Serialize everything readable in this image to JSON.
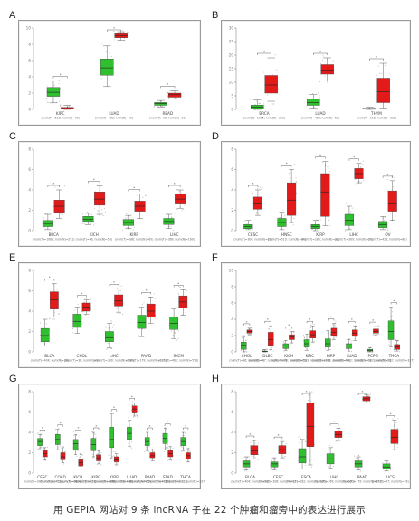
{
  "caption": "用 GEPIA 网站对 9 条 lncRNA 子在 22 个肿瘤和瘤旁中的表达进行展示",
  "colors": {
    "normal": "#2fbf2f",
    "tumor": "#e31a1a",
    "frame": "#9a9a9a",
    "bracket": "#666666"
  },
  "chart_data": [
    {
      "panel": "A",
      "type": "box",
      "ylim": [
        0,
        10
      ],
      "yticks": [
        0,
        2,
        4,
        6,
        8,
        10
      ],
      "groups": [
        {
          "name": "KIRC",
          "sub": "(num(T)=523; num(N)=72)",
          "normal": [
            0.8,
            1.6,
            2.1,
            2.7,
            3.5
          ],
          "tumor": [
            0.0,
            0.05,
            0.1,
            0.25,
            0.5
          ],
          "sig": true
        },
        {
          "name": "LUAD",
          "sub": "(num(T)=483; num(N)=59)",
          "normal": [
            2.8,
            4.2,
            5.1,
            6.2,
            7.8
          ],
          "tumor": [
            8.5,
            8.8,
            9.05,
            9.3,
            9.55
          ],
          "sig": true
        },
        {
          "name": "READ",
          "sub": "(num(T)=92; num(N)=10)",
          "normal": [
            0.3,
            0.5,
            0.7,
            0.85,
            1.1
          ],
          "tumor": [
            1.3,
            1.5,
            1.8,
            2.0,
            2.3
          ],
          "sig": true
        }
      ]
    },
    {
      "panel": "B",
      "type": "box",
      "ylim": [
        0,
        30
      ],
      "yticks": [
        0,
        5,
        10,
        15,
        20,
        25,
        30
      ],
      "groups": [
        {
          "name": "BRCA",
          "sub": "(num(T)=1085; num(N)=291)",
          "normal": [
            0.0,
            0.3,
            0.8,
            1.6,
            3.5
          ],
          "tumor": [
            3.0,
            6.0,
            9.0,
            12.5,
            19.0
          ],
          "sig": true
        },
        {
          "name": "LUAD",
          "sub": "(num(T)=483; num(N)=59)",
          "normal": [
            0.5,
            1.5,
            2.5,
            3.8,
            5.5
          ],
          "tumor": [
            10.5,
            13.0,
            14.5,
            16.5,
            19.0
          ],
          "sig": true
        },
        {
          "name": "THYM",
          "sub": "(num(T)=118; num(N)=339)",
          "normal": [
            0.0,
            0.1,
            0.2,
            0.4,
            0.8
          ],
          "tumor": [
            0.5,
            2.5,
            6.5,
            11.5,
            17.0
          ],
          "sig": true
        }
      ]
    },
    {
      "panel": "C",
      "type": "box",
      "ylim": [
        0,
        8
      ],
      "yticks": [
        0,
        2,
        4,
        6,
        8
      ],
      "groups": [
        {
          "name": "BRCA",
          "sub": "(num(T)=1085; num(N)=291)",
          "normal": [
            0.1,
            0.4,
            0.7,
            1.0,
            1.6
          ],
          "tumor": [
            1.2,
            1.8,
            2.4,
            3.0,
            4.0
          ],
          "sig": true
        },
        {
          "name": "KICH",
          "sub": "(num(T)=66; num(N)=53)",
          "normal": [
            0.6,
            0.9,
            1.1,
            1.4,
            1.7
          ],
          "tumor": [
            1.6,
            2.5,
            3.1,
            3.8,
            4.4
          ],
          "sig": true
        },
        {
          "name": "KIRP",
          "sub": "(num(T)=286; num(N)=60)",
          "normal": [
            0.2,
            0.5,
            0.8,
            1.1,
            1.5
          ],
          "tumor": [
            1.2,
            1.9,
            2.4,
            2.9,
            3.6
          ],
          "sig": true
        },
        {
          "name": "LIHC",
          "sub": "(num(T)=369; num(N)=160)",
          "normal": [
            0.2,
            0.6,
            0.9,
            1.2,
            1.6
          ],
          "tumor": [
            2.2,
            2.7,
            3.1,
            3.6,
            4.0
          ],
          "sig": true
        }
      ]
    },
    {
      "panel": "D",
      "type": "box",
      "ylim": [
        0,
        8
      ],
      "yticks": [
        0,
        2,
        4,
        6,
        8
      ],
      "groups": [
        {
          "name": "CESC",
          "sub": "(num(T)=306; num(N)=13)",
          "normal": [
            0.1,
            0.2,
            0.4,
            0.6,
            1.0
          ],
          "tumor": [
            1.5,
            2.1,
            2.7,
            3.3,
            4.0
          ],
          "sig": true
        },
        {
          "name": "HNSC",
          "sub": "(num(T)=519; num(N)=44)",
          "normal": [
            0.1,
            0.4,
            0.8,
            1.2,
            1.8
          ],
          "tumor": [
            0.8,
            1.5,
            3.0,
            4.7,
            6.0
          ],
          "sig": true
        },
        {
          "name": "KIRP",
          "sub": "(num(T)=286; num(N)=32)",
          "normal": [
            0.0,
            0.2,
            0.4,
            0.6,
            1.0
          ],
          "tumor": [
            0.5,
            1.4,
            3.8,
            5.6,
            6.8
          ],
          "sig": true
        },
        {
          "name": "LIHC",
          "sub": "(num(T)=369; num(N)=50)",
          "normal": [
            0.1,
            0.5,
            1.0,
            1.6,
            2.4
          ],
          "tumor": [
            4.7,
            5.1,
            5.6,
            6.1,
            6.6
          ],
          "sig": true
        },
        {
          "name": "OV",
          "sub": "(num(T)=426; num(N)=88)",
          "normal": [
            0.1,
            0.3,
            0.6,
            0.9,
            1.4
          ],
          "tumor": [
            1.0,
            1.9,
            2.7,
            3.9,
            4.9
          ],
          "sig": true
        }
      ]
    },
    {
      "panel": "E",
      "type": "box",
      "ylim": [
        0,
        8
      ],
      "yticks": [
        0,
        2,
        4,
        6,
        8
      ],
      "groups": [
        {
          "name": "BLCA",
          "sub": "(num(T)=404; num(N)=28)",
          "normal": [
            0.6,
            1.0,
            1.6,
            2.3,
            3.2
          ],
          "tumor": [
            3.4,
            4.2,
            5.1,
            5.9,
            6.7
          ],
          "sig": true
        },
        {
          "name": "CHOL",
          "sub": "(num(T)=36; num(N)=9)",
          "normal": [
            1.8,
            2.4,
            3.0,
            3.7,
            4.4
          ],
          "tumor": [
            3.7,
            4.0,
            4.4,
            4.8,
            5.1
          ],
          "sig": true
        },
        {
          "name": "LIHC",
          "sub": "(num(T)=369; num(N)=160)",
          "normal": [
            0.4,
            1.0,
            1.4,
            2.0,
            2.8
          ],
          "tumor": [
            3.9,
            4.5,
            5.0,
            5.6,
            6.2
          ],
          "sig": true
        },
        {
          "name": "PAAD",
          "sub": "(num(T)=179; num(N)=171)",
          "normal": [
            1.5,
            2.3,
            2.9,
            3.6,
            4.4
          ],
          "tumor": [
            2.8,
            3.4,
            4.0,
            4.7,
            5.4
          ],
          "sig": true
        },
        {
          "name": "SKCM",
          "sub": "(num(T)=461; num(N)=558)",
          "normal": [
            1.3,
            2.2,
            2.8,
            3.4,
            4.2
          ],
          "tumor": [
            3.6,
            4.3,
            4.9,
            5.5,
            6.1
          ],
          "sig": true
        }
      ]
    },
    {
      "panel": "F",
      "type": "box",
      "ylim": [
        0,
        10
      ],
      "yticks": [
        0,
        2,
        4,
        6,
        8,
        10
      ],
      "groups": [
        {
          "name": "CHOL",
          "sub": "(num(T)=36; num(N)=9)",
          "normal": [
            0.0,
            0.3,
            0.8,
            1.2,
            1.8
          ],
          "tumor": [
            2.1,
            2.3,
            2.5,
            2.7,
            2.9
          ],
          "sig": true
        },
        {
          "name": "DLBC",
          "sub": "(num(T)=47; num(N)=337)",
          "normal": [
            0.0,
            0.02,
            0.05,
            0.1,
            0.3
          ],
          "tumor": [
            0.3,
            0.8,
            1.5,
            2.4,
            3.2
          ],
          "sig": true
        },
        {
          "name": "KICH",
          "sub": "(num(T)=66; num(N)=53)",
          "normal": [
            0.2,
            0.4,
            0.7,
            1.0,
            1.4
          ],
          "tumor": [
            1.1,
            1.5,
            1.8,
            2.1,
            2.5
          ],
          "sig": true
        },
        {
          "name": "KIRC",
          "sub": "(num(T)=523; num(N)=100)",
          "normal": [
            0.2,
            0.6,
            1.0,
            1.5,
            2.2
          ],
          "tumor": [
            1.2,
            1.7,
            2.1,
            2.6,
            3.2
          ],
          "sig": true
        },
        {
          "name": "KIRP",
          "sub": "(num(T)=286; num(N)=60)",
          "normal": [
            0.2,
            0.6,
            1.0,
            1.6,
            2.6
          ],
          "tumor": [
            1.5,
            2.0,
            2.4,
            2.9,
            3.5
          ],
          "sig": true
        },
        {
          "name": "LUAD",
          "sub": "(num(T)=483; num(N)=59)",
          "normal": [
            0.1,
            0.4,
            0.7,
            1.0,
            1.5
          ],
          "tumor": [
            1.4,
            1.9,
            2.3,
            2.7,
            3.2
          ],
          "sig": true
        },
        {
          "name": "PCPG",
          "sub": "(num(T)=182; num(N)=3)",
          "normal": [
            0.0,
            0.1,
            0.2,
            0.3,
            0.5
          ],
          "tumor": [
            2.1,
            2.3,
            2.5,
            2.8,
            3.1
          ],
          "sig": true
        },
        {
          "name": "THCA",
          "sub": "(num(T)=512; num(N)=337)",
          "normal": [
            0.6,
            1.5,
            2.5,
            3.8,
            5.5
          ],
          "tumor": [
            0.1,
            0.3,
            0.6,
            0.9,
            1.4
          ],
          "sig": true
        }
      ]
    },
    {
      "panel": "G",
      "type": "box",
      "ylim": [
        0,
        8
      ],
      "yticks": [
        0,
        2,
        4,
        6,
        8
      ],
      "groups": [
        {
          "name": "CESC",
          "sub": "(num(T)=306; num(N)=13)",
          "normal": [
            2.4,
            2.7,
            3.1,
            3.4,
            3.8
          ],
          "tumor": [
            1.3,
            1.6,
            1.9,
            2.2,
            2.5
          ],
          "sig": true
        },
        {
          "name": "COAD",
          "sub": "(num(T)=275; num(N)=349)",
          "normal": [
            2.3,
            2.8,
            3.3,
            3.8,
            4.3
          ],
          "tumor": [
            1.0,
            1.3,
            1.6,
            2.0,
            2.5
          ],
          "sig": true
        },
        {
          "name": "KICH",
          "sub": "(num(T)=66; num(N)=53)",
          "normal": [
            1.8,
            2.3,
            2.9,
            3.3,
            3.8
          ],
          "tumor": [
            0.4,
            0.7,
            1.0,
            1.3,
            1.8
          ],
          "sig": true
        },
        {
          "name": "KIRC",
          "sub": "(num(T)=523; num(N)=100)",
          "normal": [
            1.6,
            2.2,
            2.8,
            3.4,
            4.0
          ],
          "tumor": [
            0.9,
            1.2,
            1.5,
            1.8,
            2.2
          ],
          "sig": true
        },
        {
          "name": "KIRP",
          "sub": "(num(T)=286; num(N)=60)",
          "normal": [
            1.5,
            2.5,
            3.3,
            4.5,
            5.8
          ],
          "tumor": [
            0.8,
            1.1,
            1.3,
            1.6,
            1.9
          ],
          "sig": true
        },
        {
          "name": "LUAD",
          "sub": "(num(T)=483; num(N)=59)",
          "normal": [
            2.6,
            3.3,
            3.9,
            4.5,
            5.2
          ],
          "tumor": [
            5.6,
            5.9,
            6.3,
            6.6,
            6.9
          ],
          "sig": true
        },
        {
          "name": "PRAD",
          "sub": "(num(T)=492; num(N)=152)",
          "normal": [
            2.2,
            2.7,
            3.1,
            3.5,
            4.0
          ],
          "tumor": [
            1.2,
            1.5,
            1.7,
            2.0,
            2.3
          ],
          "sig": true
        },
        {
          "name": "STAD",
          "sub": "(num(T)=408; num(N)=211)",
          "normal": [
            2.3,
            2.9,
            3.4,
            3.9,
            4.4
          ],
          "tumor": [
            1.3,
            1.6,
            1.9,
            2.2,
            2.6
          ],
          "sig": true
        },
        {
          "name": "THCA",
          "sub": "(num(T)=512; num(N)=337)",
          "normal": [
            2.2,
            2.7,
            3.1,
            3.5,
            4.0
          ],
          "tumor": [
            1.1,
            1.4,
            1.7,
            2.0,
            2.4
          ],
          "sig": true
        }
      ]
    },
    {
      "panel": "H",
      "type": "box",
      "ylim": [
        0,
        8
      ],
      "yticks": [
        0,
        2,
        4,
        6,
        8
      ],
      "groups": [
        {
          "name": "BLCA",
          "sub": "(num(T)=404; num(N)=28)",
          "normal": [
            0.3,
            0.6,
            0.9,
            1.2,
            1.6
          ],
          "tumor": [
            1.4,
            1.8,
            2.2,
            2.7,
            3.2
          ],
          "sig": true
        },
        {
          "name": "CESC",
          "sub": "(num(T)=306; num(N)=13)",
          "normal": [
            0.3,
            0.6,
            0.9,
            1.1,
            1.5
          ],
          "tumor": [
            1.5,
            1.9,
            2.3,
            2.7,
            3.1
          ],
          "sig": true
        },
        {
          "name": "ESCA",
          "sub": "(num(T)=182; num(N)=286)",
          "normal": [
            0.4,
            1.0,
            1.6,
            2.4,
            3.3
          ],
          "tumor": [
            0.8,
            2.6,
            4.6,
            6.9,
            7.9
          ],
          "sig": true
        },
        {
          "name": "LIHC",
          "sub": "(num(T)=369; num(N)=160)",
          "normal": [
            0.5,
            0.9,
            1.4,
            1.9,
            2.5
          ],
          "tumor": [
            3.2,
            3.5,
            3.8,
            4.1,
            4.4
          ],
          "sig": true
        },
        {
          "name": "PAAD",
          "sub": "(num(T)=179; num(N)=171)",
          "normal": [
            0.3,
            0.6,
            0.9,
            1.2,
            1.6
          ],
          "tumor": [
            6.9,
            7.1,
            7.3,
            7.5,
            7.7
          ],
          "sig": true
        },
        {
          "name": "UCS",
          "sub": "(num(T)=57; num(N)=78)",
          "normal": [
            0.2,
            0.4,
            0.6,
            0.9,
            1.2
          ],
          "tumor": [
            2.3,
            2.9,
            3.5,
            4.3,
            5.2
          ],
          "sig": true
        }
      ]
    }
  ]
}
